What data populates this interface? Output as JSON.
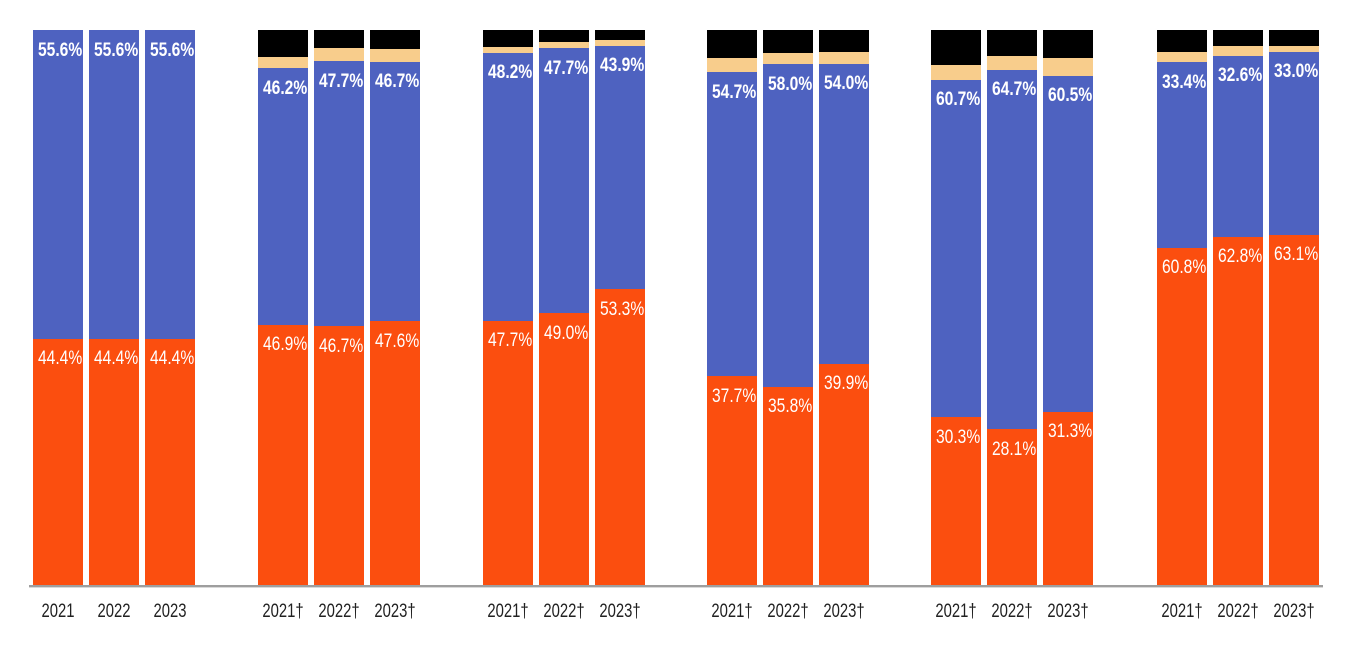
{
  "chart_data": {
    "type": "bar",
    "stacking": "percent",
    "orientation": "vertical",
    "title": "",
    "xlabel": "",
    "ylabel": "",
    "legend_position": "none-visible",
    "grid": false,
    "ylim": [
      0,
      100
    ],
    "segments_order_bottom_to_top": [
      "orange",
      "blue",
      "yellow",
      "black"
    ],
    "colors": {
      "orange": "#fb4e0f",
      "blue": "#4e62c0",
      "yellow": "#f8cd8c",
      "black": "#000000",
      "axis_line": "#9e9e9e",
      "axis_label_text": "#212121",
      "value_label_text": "#ffffff",
      "background": "#ffffff"
    },
    "groups": [
      {
        "bars": [
          {
            "category": "2021",
            "segments": {
              "orange": 44.4,
              "blue": 55.6,
              "yellow": 0,
              "black": 0
            },
            "labels": {
              "orange": "44.4%",
              "blue": "55.6%"
            }
          },
          {
            "category": "2022",
            "segments": {
              "orange": 44.4,
              "blue": 55.6,
              "yellow": 0,
              "black": 0
            },
            "labels": {
              "orange": "44.4%",
              "blue": "55.6%"
            }
          },
          {
            "category": "2023",
            "segments": {
              "orange": 44.4,
              "blue": 55.6,
              "yellow": 0,
              "black": 0
            },
            "labels": {
              "orange": "44.4%",
              "blue": "55.6%"
            }
          }
        ]
      },
      {
        "bars": [
          {
            "category": "2021†",
            "segments": {
              "orange": 46.9,
              "blue": 46.2,
              "yellow": 2.0,
              "black": 4.9
            },
            "labels": {
              "orange": "46.9%",
              "blue": "46.2%"
            }
          },
          {
            "category": "2022†",
            "segments": {
              "orange": 46.7,
              "blue": 47.7,
              "yellow": 2.3,
              "black": 3.3
            },
            "labels": {
              "orange": "46.7%",
              "blue": "47.7%"
            }
          },
          {
            "category": "2023†",
            "segments": {
              "orange": 47.6,
              "blue": 46.7,
              "yellow": 2.3,
              "black": 3.4
            },
            "labels": {
              "orange": "47.6%",
              "blue": "46.7%"
            }
          }
        ]
      },
      {
        "bars": [
          {
            "category": "2021†",
            "segments": {
              "orange": 47.7,
              "blue": 48.2,
              "yellow": 1.1,
              "black": 3.0
            },
            "labels": {
              "orange": "47.7%",
              "blue": "48.2%"
            }
          },
          {
            "category": "2022†",
            "segments": {
              "orange": 49.0,
              "blue": 47.7,
              "yellow": 1.1,
              "black": 2.2
            },
            "labels": {
              "orange": "49.0%",
              "blue": "47.7%"
            }
          },
          {
            "category": "2023†",
            "segments": {
              "orange": 53.3,
              "blue": 43.9,
              "yellow": 1.0,
              "black": 1.8
            },
            "labels": {
              "orange": "53.3%",
              "blue": "43.9%"
            }
          }
        ]
      },
      {
        "bars": [
          {
            "category": "2021†",
            "segments": {
              "orange": 37.7,
              "blue": 54.7,
              "yellow": 2.5,
              "black": 5.1
            },
            "labels": {
              "orange": "37.7%",
              "blue": "54.7%"
            }
          },
          {
            "category": "2022†",
            "segments": {
              "orange": 35.8,
              "blue": 58.0,
              "yellow": 2.0,
              "black": 4.2
            },
            "labels": {
              "orange": "35.8%",
              "blue": "58.0%"
            }
          },
          {
            "category": "2023†",
            "segments": {
              "orange": 39.9,
              "blue": 54.0,
              "yellow": 2.1,
              "black": 4.0
            },
            "labels": {
              "orange": "39.9%",
              "blue": "54.0%"
            }
          }
        ]
      },
      {
        "bars": [
          {
            "category": "2021†",
            "segments": {
              "orange": 30.3,
              "blue": 60.7,
              "yellow": 2.7,
              "black": 6.3
            },
            "labels": {
              "orange": "30.3%",
              "blue": "60.7%"
            }
          },
          {
            "category": "2022†",
            "segments": {
              "orange": 28.1,
              "blue": 64.7,
              "yellow": 2.5,
              "black": 4.7
            },
            "labels": {
              "orange": "28.1%",
              "blue": "64.7%"
            }
          },
          {
            "category": "2023†",
            "segments": {
              "orange": 31.3,
              "blue": 60.5,
              "yellow": 3.1,
              "black": 5.1
            },
            "labels": {
              "orange": "31.3%",
              "blue": "60.5%"
            }
          }
        ]
      },
      {
        "bars": [
          {
            "category": "2021†",
            "segments": {
              "orange": 60.8,
              "blue": 33.4,
              "yellow": 1.8,
              "black": 4.0
            },
            "labels": {
              "orange": "60.8%",
              "blue": "33.4%"
            }
          },
          {
            "category": "2022†",
            "segments": {
              "orange": 62.8,
              "blue": 32.6,
              "yellow": 1.8,
              "black": 2.8
            },
            "labels": {
              "orange": "62.8%",
              "blue": "32.6%"
            }
          },
          {
            "category": "2023†",
            "segments": {
              "orange": 63.1,
              "blue": 33.0,
              "yellow": 1.1,
              "black": 2.8
            },
            "labels": {
              "orange": "63.1%",
              "blue": "33.0%"
            }
          }
        ]
      }
    ]
  }
}
